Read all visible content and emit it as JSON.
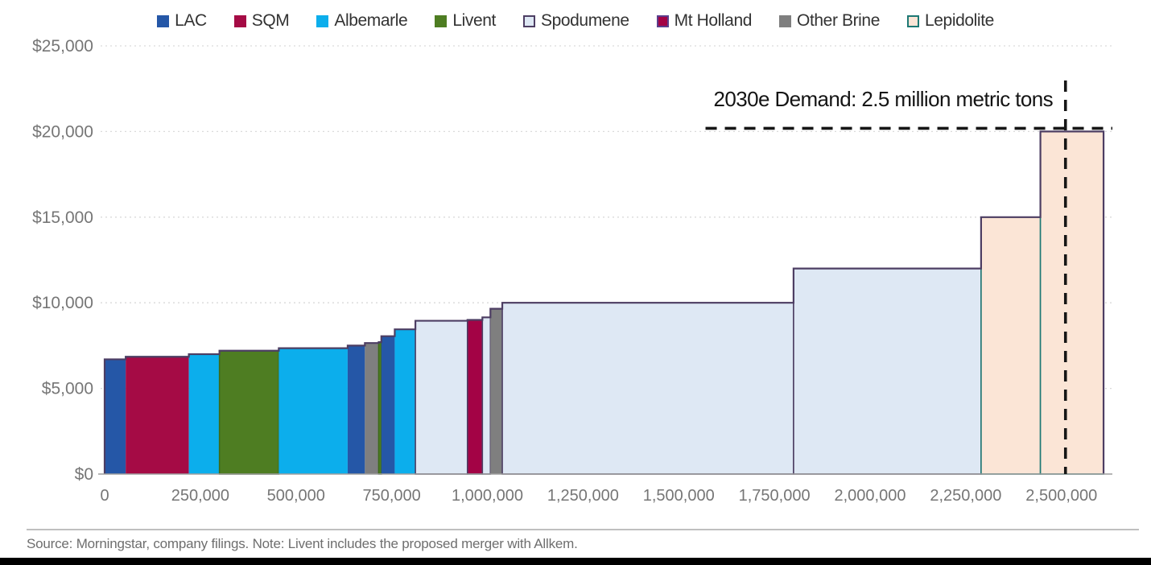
{
  "chart_data": {
    "type": "bar",
    "variant": "cost-curve-variable-width-bars",
    "title": "",
    "xlabel": "",
    "ylabel": "",
    "xlim": [
      0,
      2633000
    ],
    "ylim": [
      0,
      25000
    ],
    "grid": "horizontal-dotted",
    "legend_position": "top-center",
    "x_ticks": [
      {
        "value": 0,
        "label": "0"
      },
      {
        "value": 250000,
        "label": "250,000"
      },
      {
        "value": 500000,
        "label": "500,000"
      },
      {
        "value": 750000,
        "label": "750,000"
      },
      {
        "value": 1000000,
        "label": "1,000,000"
      },
      {
        "value": 1250000,
        "label": "1,250,000"
      },
      {
        "value": 1500000,
        "label": "1,500,000"
      },
      {
        "value": 1750000,
        "label": "1,750,000"
      },
      {
        "value": 2000000,
        "label": "2,000,000"
      },
      {
        "value": 2250000,
        "label": "2,250,000"
      },
      {
        "value": 2500000,
        "label": "2,500,000"
      }
    ],
    "y_ticks": [
      {
        "value": 0,
        "label": "$0"
      },
      {
        "value": 5000,
        "label": "$5,000"
      },
      {
        "value": 10000,
        "label": "$10,000"
      },
      {
        "value": 15000,
        "label": "$15,000"
      },
      {
        "value": 20000,
        "label": "$20,000"
      },
      {
        "value": 25000,
        "label": "$25,000"
      }
    ],
    "legend": [
      {
        "label": "LAC",
        "fill": "#2557A7",
        "border": "#2557A7"
      },
      {
        "label": "SQM",
        "fill": "#A50B45",
        "border": "#A50B45"
      },
      {
        "label": "Albemarle",
        "fill": "#0CAEEC",
        "border": "#0CAEEC"
      },
      {
        "label": "Livent",
        "fill": "#4E7D22",
        "border": "#4E7D22"
      },
      {
        "label": "Spodumene",
        "fill": "#DEE8F4",
        "border": "#4D3E63"
      },
      {
        "label": "Mt Holland",
        "fill": "#A30345",
        "border": "#5B3E8C"
      },
      {
        "label": "Other Brine",
        "fill": "#7F7F7F",
        "border": "#7F7F7F"
      },
      {
        "label": "Lepidolite",
        "fill": "#FBE5D6",
        "border": "#1D7874"
      }
    ],
    "series_styles": {
      "LAC": {
        "fill": "#2557A7",
        "stroke": "none"
      },
      "SQM": {
        "fill": "#A50B45",
        "stroke": "none"
      },
      "Albemarle": {
        "fill": "#0CAEEC",
        "stroke": "none"
      },
      "Livent": {
        "fill": "#4E7D22",
        "stroke": "#3E6A1A"
      },
      "Spodumene": {
        "fill": "#DEE8F4",
        "stroke": "#4D3E63"
      },
      "Mt Holland": {
        "fill": "#A30345",
        "stroke": "#4D3E63"
      },
      "Other Brine": {
        "fill": "#7F7F7F",
        "stroke": "none"
      },
      "Lepidolite": {
        "fill": "#FBE5D6",
        "stroke": "#1D7874"
      }
    },
    "bars": [
      {
        "series": "LAC",
        "tons_from": 0,
        "tons_to": 55000,
        "cost": 6700
      },
      {
        "series": "SQM",
        "tons_from": 55000,
        "tons_to": 220000,
        "cost": 6850
      },
      {
        "series": "Albemarle",
        "tons_from": 220000,
        "tons_to": 300000,
        "cost": 7000
      },
      {
        "series": "Livent",
        "tons_from": 300000,
        "tons_to": 455000,
        "cost": 7200
      },
      {
        "series": "Albemarle",
        "tons_from": 455000,
        "tons_to": 635000,
        "cost": 7350
      },
      {
        "series": "LAC",
        "tons_from": 635000,
        "tons_to": 680000,
        "cost": 7500
      },
      {
        "series": "Other Brine",
        "tons_from": 680000,
        "tons_to": 716000,
        "cost": 7650
      },
      {
        "series": "Livent",
        "tons_from": 716000,
        "tons_to": 723000,
        "cost": 7700
      },
      {
        "series": "LAC",
        "tons_from": 723000,
        "tons_to": 758000,
        "cost": 8050
      },
      {
        "series": "Albemarle",
        "tons_from": 758000,
        "tons_to": 812000,
        "cost": 8450
      },
      {
        "series": "Spodumene",
        "tons_from": 812000,
        "tons_to": 948000,
        "cost": 8950
      },
      {
        "series": "Mt Holland",
        "tons_from": 948000,
        "tons_to": 987000,
        "cost": 9000
      },
      {
        "series": "Spodumene",
        "tons_from": 987000,
        "tons_to": 1008000,
        "cost": 9150
      },
      {
        "series": "Other Brine",
        "tons_from": 1008000,
        "tons_to": 1039000,
        "cost": 9650
      },
      {
        "series": "Spodumene",
        "tons_from": 1039000,
        "tons_to": 1800000,
        "cost": 10000
      },
      {
        "series": "Spodumene",
        "tons_from": 1800000,
        "tons_to": 2290000,
        "cost": 12000
      },
      {
        "series": "Lepidolite",
        "tons_from": 2290000,
        "tons_to": 2445000,
        "cost": 15000
      },
      {
        "series": "Lepidolite",
        "tons_from": 2445000,
        "tons_to": 2610000,
        "cost": 20000
      }
    ],
    "annotation": {
      "text": "2030e Demand: 2.5 million metric tons",
      "demand_tons": 2500000,
      "demand_cost": 20000,
      "hline_from_tons": 1570000,
      "line_style": "dashed-black"
    },
    "step_outline_color": "#4D3E63",
    "gridline_color": "#DADADA",
    "axis_line_color": "#9E9E9E",
    "tick_label_color": "#767676"
  },
  "footer": {
    "source_note": "Source: Morningstar, company filings. Note: Livent includes the proposed merger with Allkem."
  }
}
